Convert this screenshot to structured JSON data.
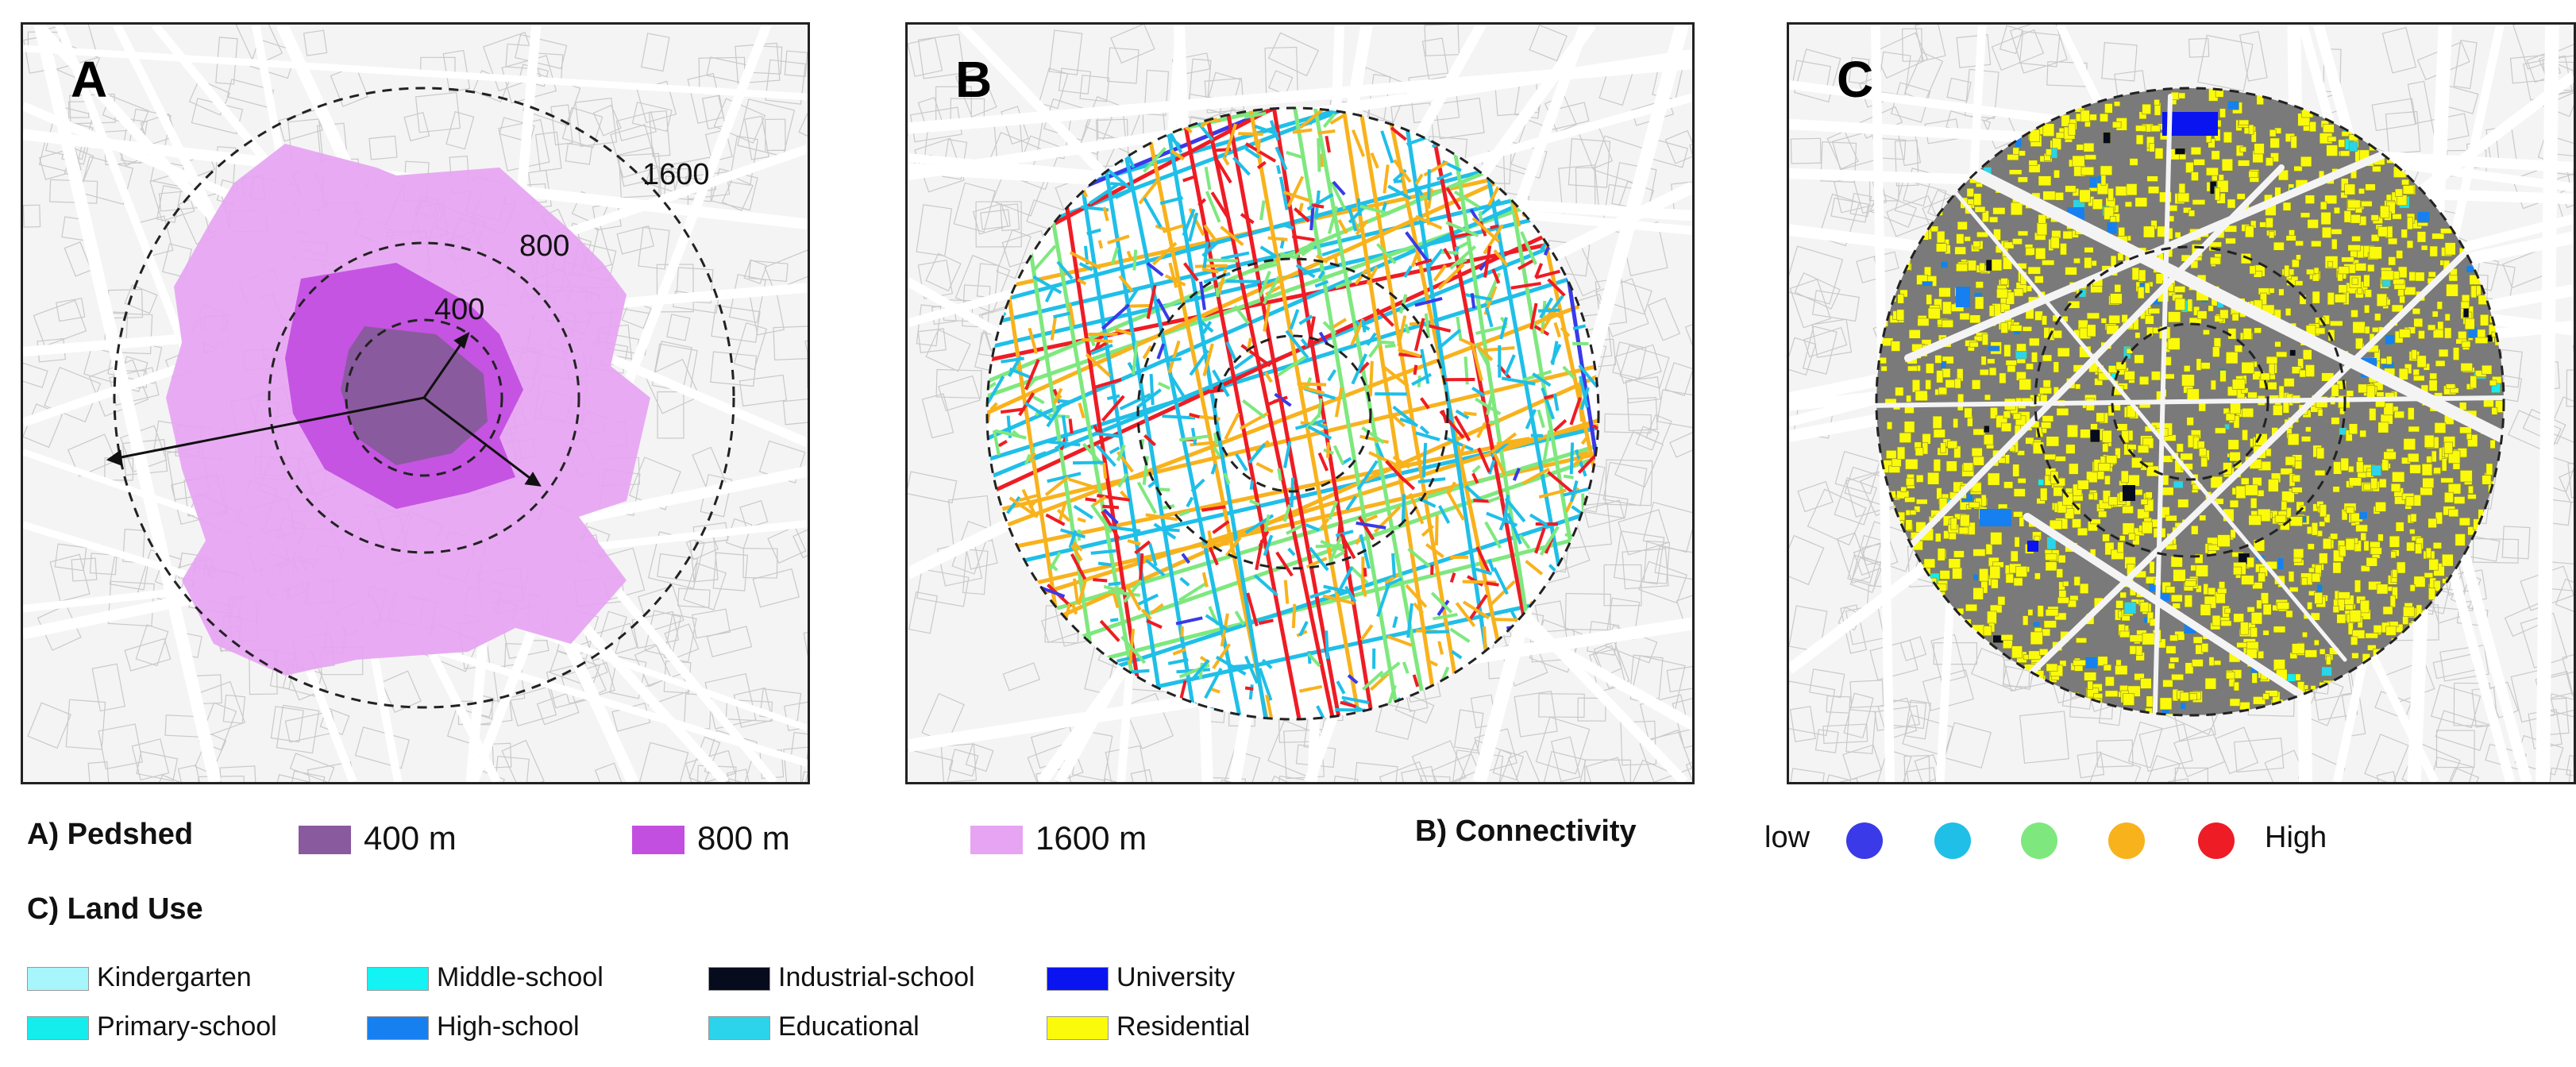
{
  "panels": {
    "a": {
      "letter": "A",
      "rings": [
        "400",
        "800",
        "1600"
      ]
    },
    "b": {
      "letter": "B"
    },
    "c": {
      "letter": "C"
    }
  },
  "legend": {
    "pedshed": {
      "title": "A) Pedshed",
      "items": [
        {
          "label": "400 m",
          "color": "#8a5a9e"
        },
        {
          "label": "800 m",
          "color": "#c34fe0"
        },
        {
          "label": "1600 m",
          "color": "#e6a4f2"
        }
      ]
    },
    "connectivity": {
      "title": "B) Connectivity",
      "low": "low",
      "high": "High",
      "colors": [
        "#3a3ae8",
        "#1fbfe8",
        "#7ee87e",
        "#f8b21c",
        "#ee1c24"
      ]
    },
    "land_use": {
      "title": "C) Land Use",
      "items": [
        {
          "label": "Kindergarten",
          "color": "#a6f6fb"
        },
        {
          "label": "Primary-school",
          "color": "#15ecec"
        },
        {
          "label": "Middle-school",
          "color": "#14f3f3"
        },
        {
          "label": "High-school",
          "color": "#1680f0"
        },
        {
          "label": "Industrial-school",
          "color": "#060b1e"
        },
        {
          "label": "Educational",
          "color": "#2bd4ea"
        },
        {
          "label": "University",
          "color": "#0a14f0"
        },
        {
          "label": "Residential",
          "color": "#fafa0a"
        }
      ]
    }
  }
}
